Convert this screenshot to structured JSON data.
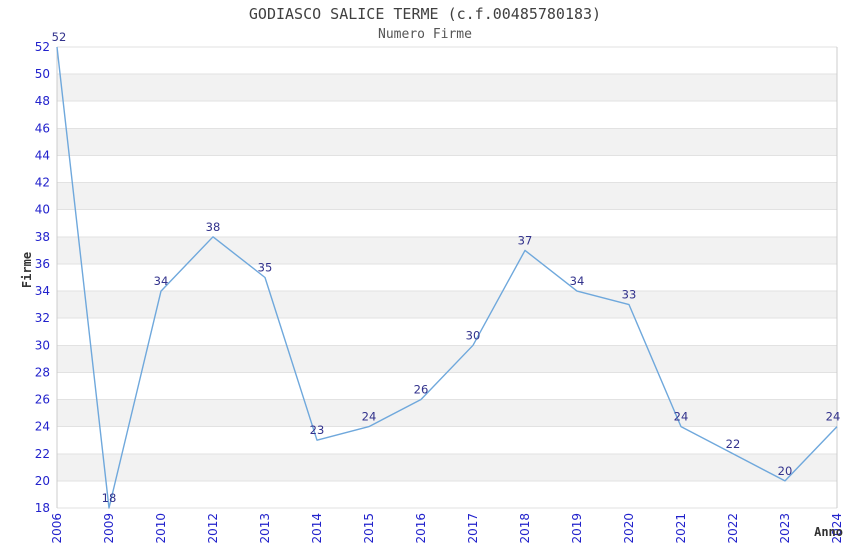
{
  "chart_data": {
    "type": "line",
    "title": "GODIASCO SALICE TERME (c.f.00485780183)",
    "subtitle": "Numero Firme",
    "xlabel": "Anno",
    "ylabel": "Firme",
    "categories": [
      "2006",
      "2009",
      "2010",
      "2012",
      "2013",
      "2014",
      "2015",
      "2016",
      "2017",
      "2018",
      "2019",
      "2020",
      "2021",
      "2022",
      "2023",
      "2024"
    ],
    "values": [
      52,
      18,
      34,
      38,
      35,
      23,
      24,
      26,
      30,
      37,
      34,
      33,
      24,
      22,
      20,
      24
    ],
    "ylim": [
      18,
      52
    ],
    "ytick_step": 2,
    "yticks": [
      18,
      20,
      22,
      24,
      26,
      28,
      30,
      32,
      34,
      36,
      38,
      40,
      42,
      44,
      46,
      48,
      50,
      52
    ],
    "grid": "horizontal-bands",
    "legend": "none",
    "colors": {
      "line": "#6FA8DC",
      "tick_label": "#2222CC",
      "data_label": "#32328C",
      "band": "#F2F2F2",
      "gridline": "#E2E2E2",
      "plot_border": "#CCCCCC",
      "title": "#404040",
      "subtitle": "#555555",
      "axis_title": "#333333"
    }
  }
}
